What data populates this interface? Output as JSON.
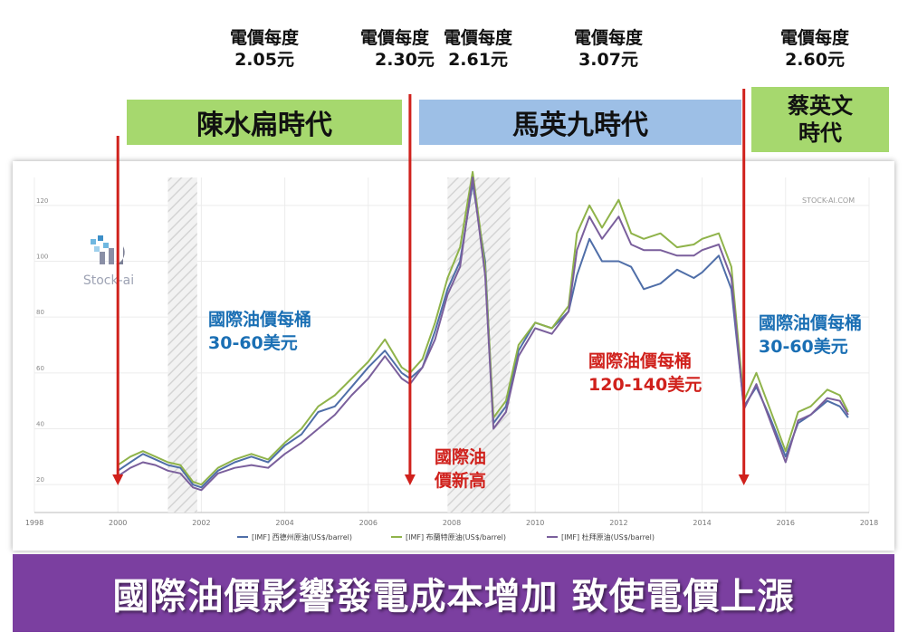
{
  "price_labels": [
    {
      "line1": "電價每度",
      "line2": "2.05元"
    },
    {
      "line1": "電價每度",
      "line2": "2.30元"
    },
    {
      "line1": "電價每度",
      "line2": "2.61元"
    },
    {
      "line1": "電價每度",
      "line2": "3.07元"
    },
    {
      "line1": "電價每度",
      "line2": "2.60元"
    }
  ],
  "eras": [
    {
      "line1": "陳水扁時代",
      "line2": "",
      "color": "#a6d86e"
    },
    {
      "line1": "馬英九時代",
      "line2": "",
      "color": "#9dbfe6"
    },
    {
      "line1": "蔡英文",
      "line2": "時代",
      "color": "#a6d86e"
    }
  ],
  "annotations": [
    {
      "line1": "國際油價每桶",
      "line2": "30-60美元",
      "color": "#1a6fb4"
    },
    {
      "line1": "國際油",
      "line2": "價新高",
      "color": "#d0211c"
    },
    {
      "line1": "國際油價每桶",
      "line2": "120-140美元",
      "color": "#d0211c"
    },
    {
      "line1": "國際油價每桶",
      "line2": "30-60美元",
      "color": "#1a6fb4"
    }
  ],
  "logo_text": "Stock-ai",
  "watermark": "STOCK-AI.COM",
  "banner": "國際油價影響發電成本增加 致使電價上漲",
  "colors": {
    "arrow": "#d0211c",
    "banner": "#7b3fa0"
  },
  "chart_data": {
    "type": "line",
    "xlim": [
      1998,
      2018
    ],
    "ylim": [
      10,
      130
    ],
    "x_ticks": [
      "1998",
      "2000",
      "2002",
      "2004",
      "2006",
      "2008",
      "2010",
      "2012",
      "2014",
      "2016",
      "2018"
    ],
    "y_ticks": [
      "20",
      "40",
      "60",
      "80",
      "100",
      "120"
    ],
    "shaded_periods": [
      [
        2001.2,
        2001.9
      ],
      [
        2007.9,
        2009.4
      ]
    ],
    "markers": [
      2000,
      2007,
      2015
    ],
    "series": [
      {
        "name": "[IMF] 西德州原油(US$/barrel)",
        "color": "#4f6ea8",
        "x": [
          2000,
          2000.3,
          2000.6,
          2000.9,
          2001.2,
          2001.5,
          2001.8,
          2002,
          2002.4,
          2002.8,
          2003.2,
          2003.6,
          2004,
          2004.4,
          2004.8,
          2005.2,
          2005.6,
          2006,
          2006.4,
          2006.8,
          2007,
          2007.3,
          2007.6,
          2007.9,
          2008.2,
          2008.5,
          2008.8,
          2009,
          2009.3,
          2009.6,
          2010,
          2010.4,
          2010.8,
          2011,
          2011.3,
          2011.6,
          2012,
          2012.3,
          2012.6,
          2013,
          2013.4,
          2013.8,
          2014,
          2014.4,
          2014.7,
          2015,
          2015.3,
          2015.6,
          2016,
          2016.3,
          2016.6,
          2017,
          2017.3,
          2017.5
        ],
        "values": [
          25,
          28,
          31,
          29,
          27,
          26,
          20,
          19,
          25,
          28,
          30,
          28,
          34,
          38,
          46,
          48,
          55,
          62,
          68,
          60,
          58,
          62,
          75,
          90,
          100,
          128,
          100,
          42,
          48,
          68,
          78,
          76,
          82,
          95,
          108,
          100,
          100,
          98,
          90,
          92,
          97,
          94,
          96,
          102,
          90,
          48,
          55,
          45,
          30,
          42,
          45,
          50,
          48,
          44
        ]
      },
      {
        "name": "[IMF] 布蘭特原油(US$/barrel)",
        "color": "#8fb34a",
        "x": [
          2000,
          2000.3,
          2000.6,
          2000.9,
          2001.2,
          2001.5,
          2001.8,
          2002,
          2002.4,
          2002.8,
          2003.2,
          2003.6,
          2004,
          2004.4,
          2004.8,
          2005.2,
          2005.6,
          2006,
          2006.4,
          2006.8,
          2007,
          2007.3,
          2007.6,
          2007.9,
          2008.2,
          2008.5,
          2008.8,
          2009,
          2009.3,
          2009.6,
          2010,
          2010.4,
          2010.8,
          2011,
          2011.3,
          2011.6,
          2012,
          2012.3,
          2012.6,
          2013,
          2013.4,
          2013.8,
          2014,
          2014.4,
          2014.7,
          2015,
          2015.3,
          2015.6,
          2016,
          2016.3,
          2016.6,
          2017,
          2017.3,
          2017.5
        ],
        "values": [
          27,
          30,
          32,
          30,
          28,
          27,
          21,
          20,
          26,
          29,
          31,
          29,
          35,
          40,
          48,
          52,
          58,
          64,
          72,
          62,
          60,
          65,
          78,
          94,
          105,
          132,
          98,
          44,
          50,
          70,
          78,
          76,
          84,
          110,
          120,
          112,
          122,
          110,
          108,
          110,
          105,
          106,
          108,
          110,
          98,
          50,
          60,
          48,
          32,
          46,
          48,
          54,
          52,
          46
        ]
      },
      {
        "name": "[IMF] 杜拜原油(US$/barrel)",
        "color": "#7a5f9c",
        "x": [
          2000,
          2000.3,
          2000.6,
          2000.9,
          2001.2,
          2001.5,
          2001.8,
          2002,
          2002.4,
          2002.8,
          2003.2,
          2003.6,
          2004,
          2004.4,
          2004.8,
          2005.2,
          2005.6,
          2006,
          2006.4,
          2006.8,
          2007,
          2007.3,
          2007.6,
          2007.9,
          2008.2,
          2008.5,
          2008.8,
          2009,
          2009.3,
          2009.6,
          2010,
          2010.4,
          2010.8,
          2011,
          2011.3,
          2011.6,
          2012,
          2012.3,
          2012.6,
          2013,
          2013.4,
          2013.8,
          2014,
          2014.4,
          2014.7,
          2015,
          2015.3,
          2015.6,
          2016,
          2016.3,
          2016.6,
          2017,
          2017.3,
          2017.5
        ],
        "values": [
          23,
          26,
          28,
          27,
          25,
          24,
          19,
          18,
          24,
          26,
          27,
          26,
          31,
          35,
          40,
          45,
          52,
          58,
          66,
          58,
          56,
          62,
          72,
          88,
          98,
          130,
          95,
          40,
          46,
          66,
          76,
          74,
          82,
          104,
          116,
          108,
          116,
          106,
          104,
          104,
          102,
          102,
          104,
          106,
          94,
          47,
          56,
          44,
          28,
          43,
          45,
          51,
          50,
          45
        ]
      }
    ]
  }
}
